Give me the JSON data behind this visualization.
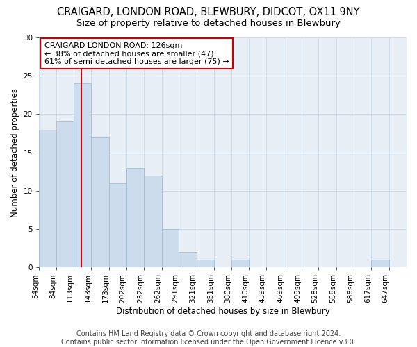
{
  "title": "CRAIGARD, LONDON ROAD, BLEWBURY, DIDCOT, OX11 9NY",
  "subtitle": "Size of property relative to detached houses in Blewbury",
  "xlabel": "Distribution of detached houses by size in Blewbury",
  "ylabel": "Number of detached properties",
  "bar_color": "#ccdcec",
  "bar_edgecolor": "#9ab8d0",
  "bins": [
    54,
    84,
    113,
    143,
    173,
    202,
    232,
    262,
    291,
    321,
    351,
    380,
    410,
    439,
    469,
    499,
    528,
    558,
    588,
    617,
    647
  ],
  "values": [
    18,
    19,
    24,
    17,
    11,
    13,
    12,
    5,
    2,
    1,
    0,
    1,
    0,
    0,
    0,
    0,
    0,
    0,
    0,
    1,
    0
  ],
  "tick_labels": [
    "54sqm",
    "84sqm",
    "113sqm",
    "143sqm",
    "173sqm",
    "202sqm",
    "232sqm",
    "262sqm",
    "291sqm",
    "321sqm",
    "351sqm",
    "380sqm",
    "410sqm",
    "439sqm",
    "469sqm",
    "499sqm",
    "528sqm",
    "558sqm",
    "588sqm",
    "617sqm",
    "647sqm"
  ],
  "property_size": 126,
  "property_name": "CRAIGARD LONDON ROAD: 126sqm",
  "annotation_line1": "← 38% of detached houses are smaller (47)",
  "annotation_line2": "61% of semi-detached houses are larger (75) →",
  "annotation_box_color": "#ffffff",
  "annotation_box_edgecolor": "#cc0000",
  "vline_color": "#cc0000",
  "ylim": [
    0,
    30
  ],
  "yticks": [
    0,
    5,
    10,
    15,
    20,
    25,
    30
  ],
  "grid_color": "#d0dce8",
  "background_color": "#e8eef6",
  "footer_line1": "Contains HM Land Registry data © Crown copyright and database right 2024.",
  "footer_line2": "Contains public sector information licensed under the Open Government Licence v3.0.",
  "title_fontsize": 10.5,
  "subtitle_fontsize": 9.5,
  "axis_label_fontsize": 8.5,
  "tick_fontsize": 7.5,
  "footer_fontsize": 7,
  "annotation_fontsize": 8
}
